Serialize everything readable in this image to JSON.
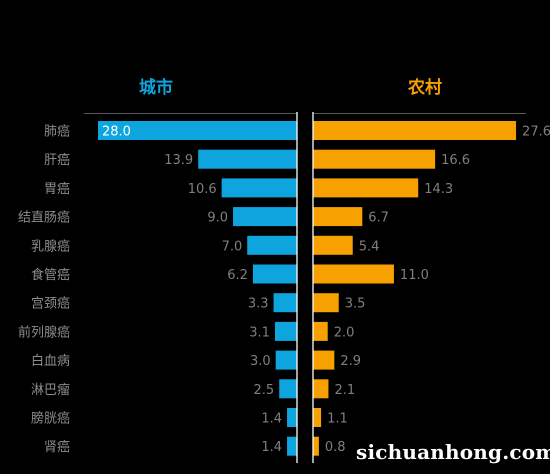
{
  "chart_data": {
    "type": "bar",
    "layout": "butterfly",
    "grid": false,
    "categories": [
      "肺癌",
      "肝癌",
      "胃癌",
      "结直肠癌",
      "乳腺癌",
      "食管癌",
      "宫颈癌",
      "前列腺癌",
      "白血病",
      "淋巴瘤",
      "膀胱癌",
      "肾癌"
    ],
    "series": [
      {
        "name": "城市",
        "color": "#0EA5DE",
        "values": [
          28.0,
          13.9,
          10.6,
          9.0,
          7.0,
          6.2,
          3.3,
          3.1,
          3.0,
          2.5,
          1.4,
          1.4
        ]
      },
      {
        "name": "农村",
        "color": "#F7A100",
        "values": [
          27.6,
          16.6,
          14.3,
          6.7,
          5.4,
          11.0,
          3.5,
          2.0,
          2.9,
          2.1,
          1.1,
          0.8
        ]
      }
    ],
    "xlim": [
      0,
      28
    ],
    "value_label_color": "#7F7F7F",
    "category_label_color": "#8C8C8C",
    "axis_color": "#ffffff"
  },
  "watermark": {
    "text": "sichuanhong.com"
  }
}
